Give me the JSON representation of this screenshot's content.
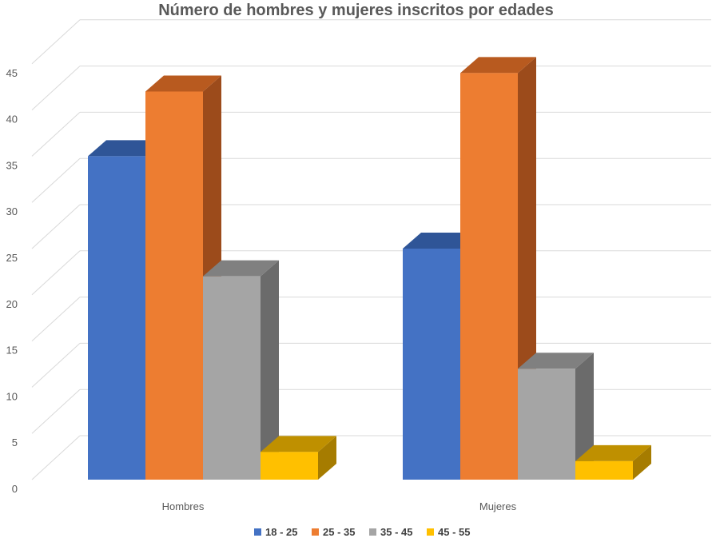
{
  "chart_data": {
    "type": "bar",
    "title": "Número de hombres y mujeres inscritos por edades",
    "categories": [
      "Hombres",
      "Mujeres"
    ],
    "series": [
      {
        "name": "18 - 25",
        "values": [
          35,
          25
        ],
        "color": "#4472C4",
        "side": "#2F5597",
        "top": "#2F5597"
      },
      {
        "name": "25 - 35",
        "values": [
          42,
          44
        ],
        "color": "#ED7D31",
        "side": "#9C4B1B",
        "top": "#B85A1F"
      },
      {
        "name": "35 - 45",
        "values": [
          22,
          12
        ],
        "color": "#A5A5A5",
        "side": "#6B6B6B",
        "top": "#808080"
      },
      {
        "name": "45 - 55",
        "values": [
          3,
          2
        ],
        "color": "#FFC000",
        "side": "#A67C00",
        "top": "#BF9000"
      }
    ],
    "ylim": [
      0,
      45
    ],
    "yticks": [
      "0",
      "5",
      "10",
      "15",
      "20",
      "25",
      "30",
      "35",
      "40",
      "45"
    ],
    "grid": true,
    "legend": "bottom",
    "style": "3d-column"
  }
}
